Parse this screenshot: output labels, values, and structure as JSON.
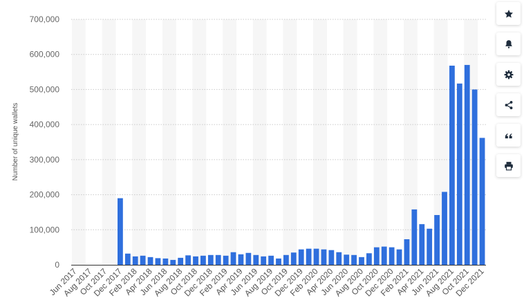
{
  "chart_data": {
    "type": "bar",
    "title": "",
    "xlabel": "",
    "ylabel": "Number of unique wallets",
    "ylim": [
      0,
      700000
    ],
    "yticks": [
      0,
      100000,
      200000,
      300000,
      400000,
      500000,
      600000,
      700000
    ],
    "ytick_labels": [
      "0",
      "100,000",
      "200,000",
      "300,000",
      "400,000",
      "500,000",
      "600,000",
      "700,000"
    ],
    "grid": true,
    "bar_color": "#2f6fdd",
    "categories": [
      "Jun 2017",
      "Jul 2017",
      "Aug 2017",
      "Sep 2017",
      "Oct 2017",
      "Nov 2017",
      "Dec 2017",
      "Jan 2018",
      "Feb 2018",
      "Mar 2018",
      "Apr 2018",
      "May 2018",
      "Jun 2018",
      "Jul 2018",
      "Aug 2018",
      "Sep 2018",
      "Oct 2018",
      "Nov 2018",
      "Dec 2018",
      "Jan 2019",
      "Feb 2019",
      "Mar 2019",
      "Apr 2019",
      "May 2019",
      "Jun 2019",
      "Jul 2019",
      "Aug 2019",
      "Sep 2019",
      "Oct 2019",
      "Nov 2019",
      "Dec 2019",
      "Jan 2020",
      "Feb 2020",
      "Mar 2020",
      "Apr 2020",
      "May 2020",
      "Jun 2020",
      "Jul 2020",
      "Aug 2020",
      "Sep 2020",
      "Oct 2020",
      "Nov 2020",
      "Dec 2020",
      "Jan 2021",
      "Feb 2021",
      "Mar 2021",
      "Apr 2021",
      "May 2021",
      "Jun 2021",
      "Jul 2021",
      "Aug 2021",
      "Sep 2021",
      "Oct 2021",
      "Nov 2021",
      "Dec 2021"
    ],
    "shown_x_labels": [
      "Jun 2017",
      "Aug 2017",
      "Oct 2017",
      "Dec 2017",
      "Feb 2018",
      "Apr 2018",
      "Jun 2018",
      "Aug 2018",
      "Oct 2018",
      "Dec 2018",
      "Feb 2019",
      "Apr 2019",
      "Jun 2019",
      "Aug 2019",
      "Oct 2019",
      "Dec 2019",
      "Feb 2020",
      "Apr 2020",
      "Jun 2020",
      "Aug 2020",
      "Oct 2020",
      "Dec 2020",
      "Feb 2021",
      "Apr 2021",
      "Jun 2021",
      "Aug 2021",
      "Oct 2021",
      "Dec 2021"
    ],
    "values": [
      0,
      0,
      0,
      0,
      0,
      0,
      190000,
      32000,
      24000,
      26000,
      22000,
      19000,
      18000,
      14000,
      20000,
      27000,
      24000,
      26000,
      28000,
      28000,
      26000,
      36000,
      30000,
      34000,
      28000,
      24000,
      26000,
      18000,
      28000,
      35000,
      44000,
      46000,
      46000,
      44000,
      42000,
      36000,
      29000,
      28000,
      22000,
      33000,
      50000,
      52000,
      50000,
      44000,
      73000,
      158000,
      116000,
      103000,
      142000,
      208000,
      568000,
      517000,
      570000,
      500000,
      362000
    ]
  },
  "toolbar": [
    {
      "name": "favorite-button",
      "icon": "star-icon"
    },
    {
      "name": "notification-button",
      "icon": "bell-icon"
    },
    {
      "name": "settings-button",
      "icon": "gear-icon"
    },
    {
      "name": "share-button",
      "icon": "share-icon"
    },
    {
      "name": "cite-button",
      "icon": "quote-icon"
    },
    {
      "name": "print-button",
      "icon": "printer-icon"
    }
  ]
}
